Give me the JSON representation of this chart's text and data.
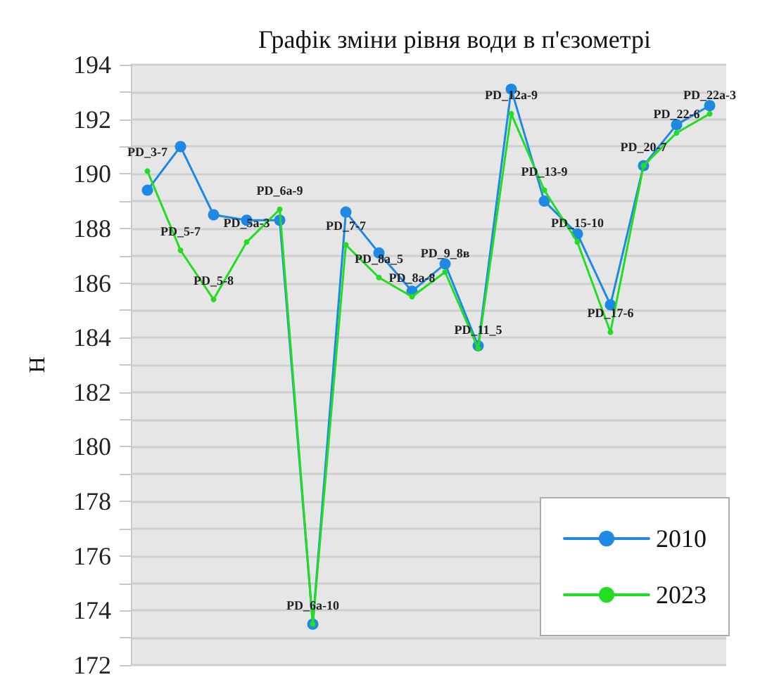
{
  "chart_data": {
    "type": "line",
    "title": "Графік зміни рівня води в п'єзометрі",
    "ylabel": "H",
    "categories": [
      "PD_3-7",
      "PD_5-7",
      "PD_5-8",
      "PD_5a-3",
      "PD_6a-9",
      "PD_6a-10",
      "PD_7-7",
      "PD_8a_5",
      "PD_8a-8",
      "PD_9_8в",
      "PD_11_5",
      "PD_12a-9",
      "PD_13-9",
      "PD_15-10",
      "PD_17-6",
      "PD_20-7",
      "PD_22-6",
      "PD_22a-3"
    ],
    "series": [
      {
        "name": "2010",
        "color": "#1e88e5",
        "values": [
          189.4,
          191.0,
          188.5,
          188.3,
          188.3,
          173.5,
          188.6,
          187.1,
          185.7,
          186.7,
          183.7,
          193.1,
          189.0,
          187.8,
          185.2,
          190.3,
          191.8,
          192.5
        ]
      },
      {
        "name": "2023",
        "color": "#22dd22",
        "values": [
          190.1,
          187.2,
          185.4,
          187.5,
          188.7,
          173.5,
          187.4,
          186.2,
          185.5,
          186.4,
          183.6,
          192.2,
          189.4,
          187.5,
          184.2,
          190.3,
          191.5,
          192.2
        ]
      }
    ],
    "ylim": [
      172,
      194
    ],
    "yticks": [
      172,
      174,
      176,
      178,
      180,
      182,
      184,
      186,
      188,
      190,
      192,
      194
    ],
    "grid": "y",
    "legend": "bottom right",
    "marker": "circle",
    "line_style": "solid",
    "tick_labels": "y"
  }
}
